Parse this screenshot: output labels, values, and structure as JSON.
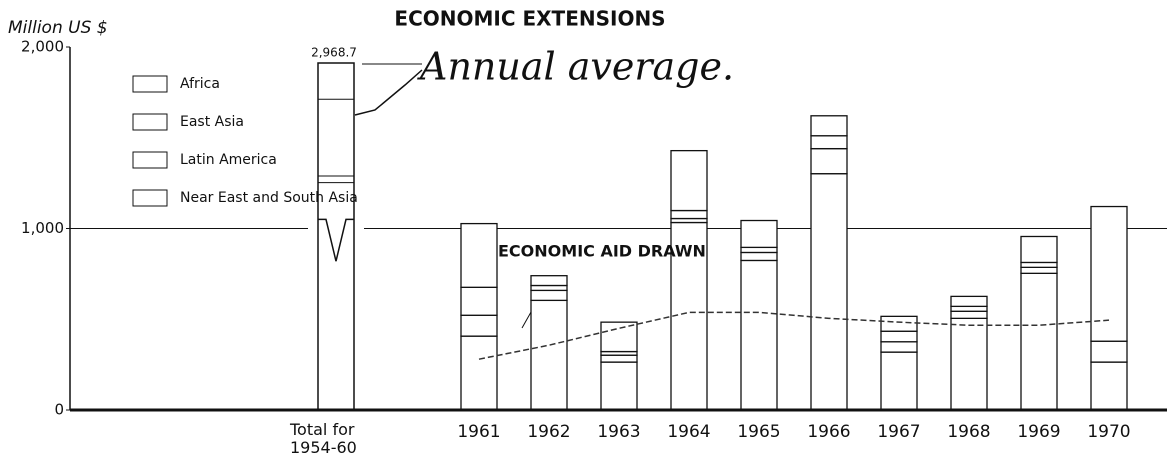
{
  "chart_data": {
    "type": "stacked_bar",
    "title": "ECONOMIC EXTENSIONS",
    "y_axis_label": "Million US $",
    "annotation": "Annual average.",
    "categories": [
      "Total for 1954-60",
      "1961",
      "1962",
      "1963",
      "1964",
      "1965",
      "1966",
      "1967",
      "1968",
      "1969",
      "1970"
    ],
    "total_value": 2968.7,
    "total_value_label": "2,968.7",
    "series": [
      {
        "name": "Near East and South Asia",
        "color": "#ffffff",
        "values": [
          null,
          407,
          604,
          264,
          1033,
          824,
          1302,
          319,
          505,
          753,
          264
        ]
      },
      {
        "name": "Latin America",
        "color": "#ffffff",
        "values": [
          null,
          115,
          55,
          38,
          22,
          44,
          138,
          57,
          39,
          33,
          115
        ]
      },
      {
        "name": "East Asia",
        "color": "#ffffff",
        "values": [
          null,
          154,
          27,
          20,
          44,
          28,
          71,
          58,
          27,
          27,
          0
        ]
      },
      {
        "name": "Africa",
        "color": "#ffffff",
        "values": [
          null,
          351,
          54,
          162,
          330,
          148,
          110,
          82,
          55,
          143,
          742
        ]
      }
    ],
    "line_series": {
      "name": "ECONOMIC AID DRAWN",
      "color": "#333333",
      "values": [
        null,
        280,
        357,
        450,
        538,
        538,
        505,
        484,
        467,
        467,
        495
      ]
    },
    "ylim": [
      0,
      2000
    ],
    "yticks": [
      0,
      {
        "value": 1000,
        "label": "1,000"
      },
      {
        "value": 2000,
        "label": "2,000"
      }
    ],
    "grid_values": [
      1000
    ]
  }
}
